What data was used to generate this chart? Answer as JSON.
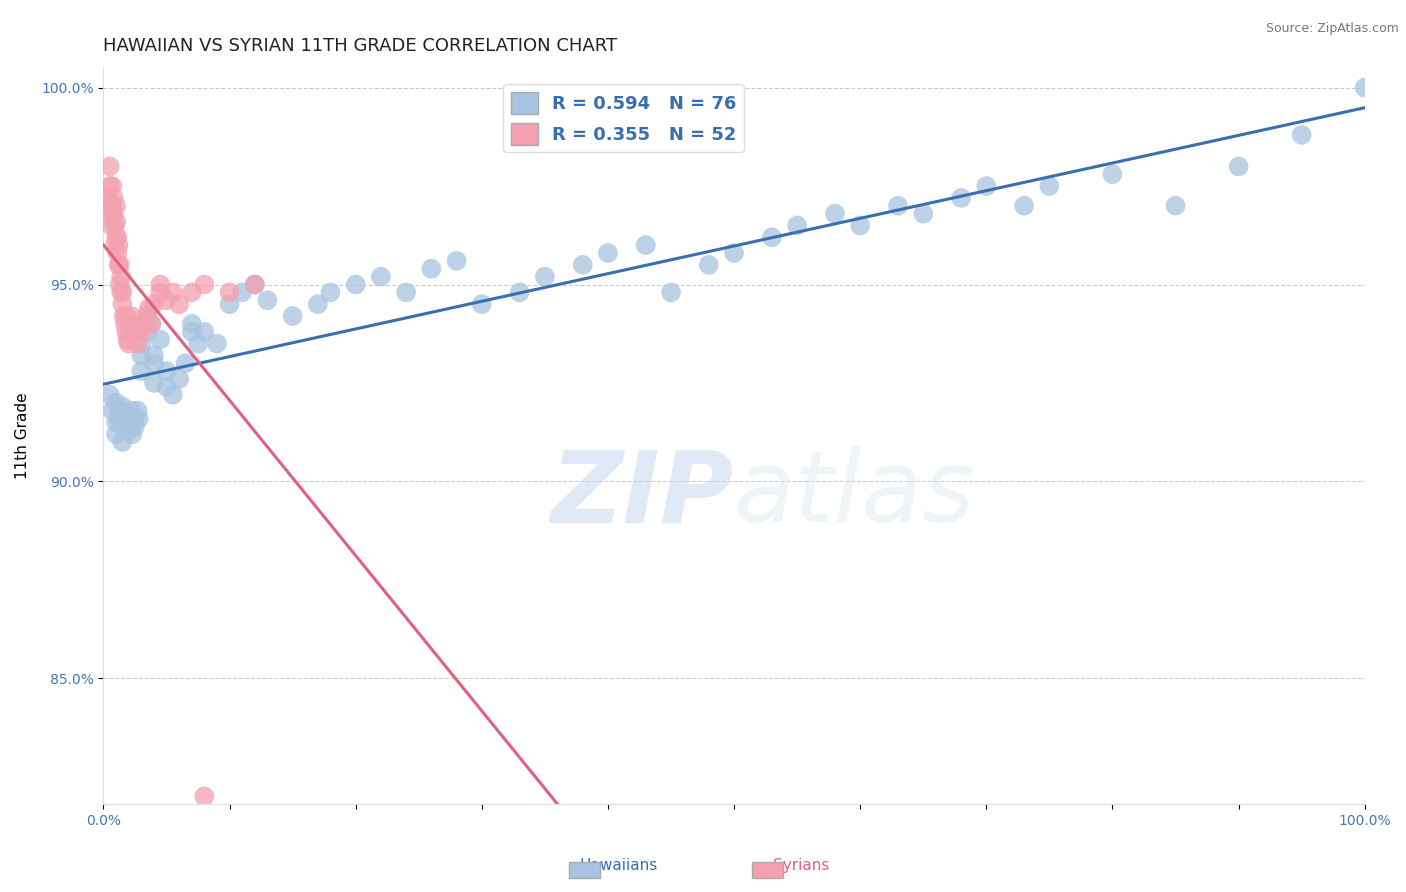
{
  "title": "HAWAIIAN VS SYRIAN 11TH GRADE CORRELATION CHART",
  "source_text": "Source: ZipAtlas.com",
  "ylabel": "11th Grade",
  "watermark_zip": "ZIP",
  "watermark_atlas": "atlas",
  "xlim": [
    0.0,
    1.0
  ],
  "ylim": [
    0.818,
    1.005
  ],
  "yticks": [
    0.85,
    0.9,
    0.95,
    1.0
  ],
  "ytick_labels": [
    "85.0%",
    "90.0%",
    "95.0%",
    "100.0%"
  ],
  "xticks": [
    0.0,
    0.1,
    0.2,
    0.3,
    0.4,
    0.5,
    0.6,
    0.7,
    0.8,
    0.9,
    1.0
  ],
  "xtick_labels": [
    "0.0%",
    "",
    "",
    "",
    "",
    "",
    "",
    "",
    "",
    "",
    "100.0%"
  ],
  "hawaiian_color": "#a8c4e0",
  "syrian_color": "#f4a0b0",
  "hawaiian_line_color": "#3a6faf",
  "syrian_line_color": "#e06080",
  "R_hawaiian": 0.594,
  "N_hawaiian": 76,
  "R_syrian": 0.355,
  "N_syrian": 52,
  "hawaiian_x": [
    0.005,
    0.007,
    0.01,
    0.01,
    0.01,
    0.012,
    0.013,
    0.015,
    0.015,
    0.015,
    0.015,
    0.018,
    0.02,
    0.02,
    0.022,
    0.023,
    0.025,
    0.025,
    0.027,
    0.028,
    0.03,
    0.03,
    0.03,
    0.035,
    0.035,
    0.038,
    0.04,
    0.04,
    0.04,
    0.045,
    0.05,
    0.05,
    0.055,
    0.06,
    0.065,
    0.07,
    0.07,
    0.075,
    0.08,
    0.09,
    0.1,
    0.11,
    0.12,
    0.13,
    0.15,
    0.17,
    0.18,
    0.2,
    0.22,
    0.24,
    0.26,
    0.28,
    0.3,
    0.33,
    0.35,
    0.38,
    0.4,
    0.43,
    0.45,
    0.48,
    0.5,
    0.53,
    0.55,
    0.58,
    0.6,
    0.63,
    0.65,
    0.68,
    0.7,
    0.73,
    0.75,
    0.8,
    0.85,
    0.9,
    0.95,
    1.0
  ],
  "hawaiian_y": [
    0.922,
    0.918,
    0.92,
    0.915,
    0.912,
    0.916,
    0.918,
    0.91,
    0.914,
    0.916,
    0.919,
    0.916,
    0.913,
    0.916,
    0.918,
    0.912,
    0.914,
    0.916,
    0.918,
    0.916,
    0.935,
    0.928,
    0.932,
    0.938,
    0.942,
    0.94,
    0.93,
    0.925,
    0.932,
    0.936,
    0.928,
    0.924,
    0.922,
    0.926,
    0.93,
    0.938,
    0.94,
    0.935,
    0.938,
    0.935,
    0.945,
    0.948,
    0.95,
    0.946,
    0.942,
    0.945,
    0.948,
    0.95,
    0.952,
    0.948,
    0.954,
    0.956,
    0.945,
    0.948,
    0.952,
    0.955,
    0.958,
    0.96,
    0.948,
    0.955,
    0.958,
    0.962,
    0.965,
    0.968,
    0.965,
    0.97,
    0.968,
    0.972,
    0.975,
    0.97,
    0.975,
    0.978,
    0.97,
    0.98,
    0.988,
    1.0
  ],
  "syrian_x": [
    0.003,
    0.004,
    0.005,
    0.005,
    0.006,
    0.007,
    0.007,
    0.008,
    0.008,
    0.009,
    0.009,
    0.01,
    0.01,
    0.01,
    0.011,
    0.011,
    0.012,
    0.012,
    0.013,
    0.013,
    0.014,
    0.014,
    0.015,
    0.015,
    0.016,
    0.017,
    0.018,
    0.018,
    0.019,
    0.02,
    0.022,
    0.022,
    0.024,
    0.025,
    0.027,
    0.028,
    0.03,
    0.032,
    0.034,
    0.036,
    0.038,
    0.04,
    0.045,
    0.05,
    0.055,
    0.06,
    0.07,
    0.08,
    0.1,
    0.12,
    0.08,
    0.045
  ],
  "syrian_y": [
    0.968,
    0.972,
    0.975,
    0.98,
    0.965,
    0.97,
    0.975,
    0.968,
    0.972,
    0.96,
    0.965,
    0.962,
    0.966,
    0.97,
    0.958,
    0.962,
    0.955,
    0.96,
    0.95,
    0.955,
    0.948,
    0.952,
    0.945,
    0.948,
    0.942,
    0.94,
    0.938,
    0.942,
    0.936,
    0.935,
    0.938,
    0.942,
    0.94,
    0.938,
    0.935,
    0.94,
    0.938,
    0.94,
    0.942,
    0.944,
    0.94,
    0.945,
    0.948,
    0.946,
    0.948,
    0.945,
    0.948,
    0.95,
    0.948,
    0.95,
    0.82,
    0.95
  ],
  "background_color": "#ffffff",
  "grid_color": "#cccccc",
  "title_fontsize": 13,
  "axis_label_fontsize": 11,
  "tick_fontsize": 10,
  "legend_fontsize": 13
}
